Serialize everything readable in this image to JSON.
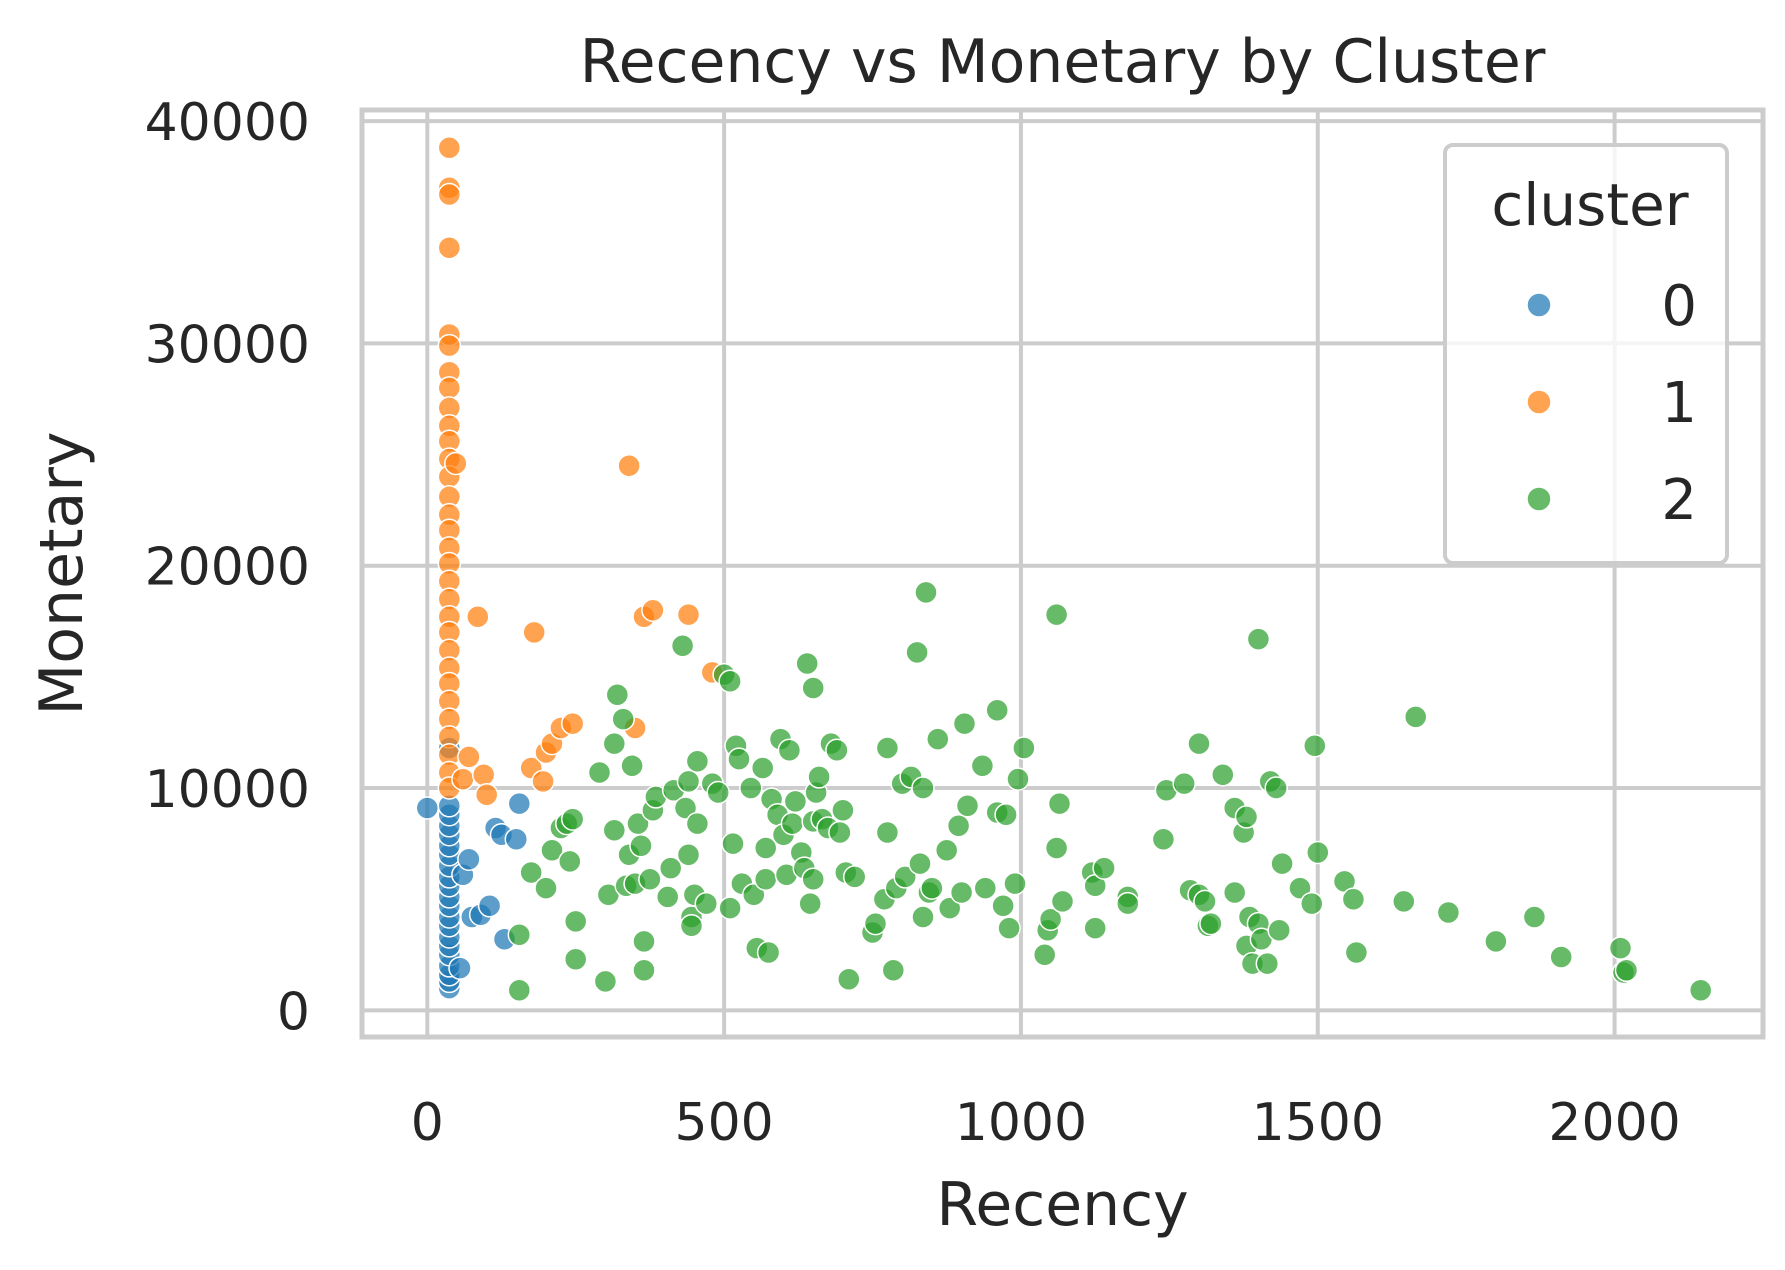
{
  "chart_data": {
    "type": "scatter",
    "title": "Recency vs Monetary by Cluster",
    "xlabel": "Recency",
    "ylabel": "Monetary",
    "xlim": [
      -110,
      2250
    ],
    "ylim": [
      -1200,
      40500
    ],
    "x_ticks": [
      0,
      500,
      1000,
      1500,
      2000
    ],
    "y_ticks": [
      0,
      10000,
      20000,
      30000,
      40000
    ],
    "grid": true,
    "legend": {
      "title": "cluster",
      "placement": "top-right"
    },
    "series": [
      {
        "name": "0",
        "color": "#1f77b4",
        "points": [
          [
            0,
            9100
          ],
          [
            37,
            1000
          ],
          [
            37,
            1300
          ],
          [
            37,
            1600
          ],
          [
            37,
            2000
          ],
          [
            37,
            2500
          ],
          [
            37,
            2900
          ],
          [
            37,
            3300
          ],
          [
            37,
            3800
          ],
          [
            37,
            4200
          ],
          [
            37,
            4700
          ],
          [
            37,
            5100
          ],
          [
            37,
            5600
          ],
          [
            37,
            6000
          ],
          [
            37,
            6500
          ],
          [
            37,
            7000
          ],
          [
            37,
            7400
          ],
          [
            37,
            7900
          ],
          [
            37,
            8300
          ],
          [
            37,
            8800
          ],
          [
            37,
            9200
          ],
          [
            37,
            11800
          ],
          [
            55,
            1900
          ],
          [
            60,
            6100
          ],
          [
            70,
            6800
          ],
          [
            75,
            4200
          ],
          [
            90,
            4300
          ],
          [
            105,
            4700
          ],
          [
            115,
            8200
          ],
          [
            125,
            7900
          ],
          [
            130,
            3200
          ],
          [
            150,
            7700
          ],
          [
            155,
            9300
          ]
        ]
      },
      {
        "name": "1",
        "color": "#ff7f0e",
        "points": [
          [
            37,
            38800
          ],
          [
            37,
            37000
          ],
          [
            37,
            36700
          ],
          [
            37,
            34300
          ],
          [
            37,
            30400
          ],
          [
            37,
            29900
          ],
          [
            37,
            28700
          ],
          [
            37,
            28000
          ],
          [
            37,
            27100
          ],
          [
            37,
            26300
          ],
          [
            37,
            25600
          ],
          [
            37,
            24800
          ],
          [
            37,
            24000
          ],
          [
            37,
            23100
          ],
          [
            37,
            22300
          ],
          [
            37,
            21600
          ],
          [
            37,
            20800
          ],
          [
            37,
            20100
          ],
          [
            37,
            19300
          ],
          [
            37,
            18500
          ],
          [
            37,
            17700
          ],
          [
            37,
            17000
          ],
          [
            37,
            16200
          ],
          [
            37,
            15400
          ],
          [
            37,
            14700
          ],
          [
            37,
            13900
          ],
          [
            37,
            13100
          ],
          [
            37,
            12300
          ],
          [
            37,
            11500
          ],
          [
            37,
            10700
          ],
          [
            37,
            10000
          ],
          [
            48,
            24600
          ],
          [
            60,
            10400
          ],
          [
            70,
            11400
          ],
          [
            85,
            17700
          ],
          [
            95,
            10600
          ],
          [
            100,
            9700
          ],
          [
            175,
            10900
          ],
          [
            180,
            17000
          ],
          [
            195,
            10300
          ],
          [
            200,
            11600
          ],
          [
            210,
            12000
          ],
          [
            225,
            12700
          ],
          [
            245,
            12900
          ],
          [
            340,
            24500
          ],
          [
            350,
            12700
          ],
          [
            365,
            17700
          ],
          [
            380,
            18000
          ],
          [
            440,
            17800
          ],
          [
            480,
            15200
          ]
        ]
      },
      {
        "name": "2",
        "color": "#2ca02c",
        "points": [
          [
            155,
            900
          ],
          [
            155,
            3400
          ],
          [
            175,
            6200
          ],
          [
            200,
            5500
          ],
          [
            210,
            7200
          ],
          [
            225,
            8200
          ],
          [
            235,
            8400
          ],
          [
            240,
            6700
          ],
          [
            245,
            8600
          ],
          [
            250,
            4000
          ],
          [
            250,
            2300
          ],
          [
            290,
            10700
          ],
          [
            300,
            1300
          ],
          [
            305,
            5200
          ],
          [
            315,
            12000
          ],
          [
            315,
            8100
          ],
          [
            320,
            14200
          ],
          [
            330,
            13100
          ],
          [
            335,
            5600
          ],
          [
            340,
            7000
          ],
          [
            345,
            11000
          ],
          [
            350,
            5700
          ],
          [
            355,
            8400
          ],
          [
            360,
            7400
          ],
          [
            365,
            3100
          ],
          [
            365,
            1800
          ],
          [
            375,
            5900
          ],
          [
            380,
            9000
          ],
          [
            385,
            9600
          ],
          [
            405,
            5100
          ],
          [
            410,
            6400
          ],
          [
            415,
            9900
          ],
          [
            430,
            16400
          ],
          [
            435,
            9100
          ],
          [
            440,
            10300
          ],
          [
            440,
            7000
          ],
          [
            445,
            4200
          ],
          [
            445,
            3800
          ],
          [
            450,
            5200
          ],
          [
            455,
            8400
          ],
          [
            455,
            11200
          ],
          [
            470,
            4800
          ],
          [
            480,
            10200
          ],
          [
            490,
            9800
          ],
          [
            500,
            15100
          ],
          [
            510,
            4600
          ],
          [
            510,
            14800
          ],
          [
            515,
            7500
          ],
          [
            520,
            11900
          ],
          [
            525,
            11300
          ],
          [
            530,
            5700
          ],
          [
            545,
            10000
          ],
          [
            550,
            5200
          ],
          [
            555,
            2800
          ],
          [
            565,
            10900
          ],
          [
            570,
            7300
          ],
          [
            570,
            5900
          ],
          [
            575,
            2600
          ],
          [
            580,
            9500
          ],
          [
            590,
            8800
          ],
          [
            595,
            12200
          ],
          [
            600,
            7900
          ],
          [
            605,
            6100
          ],
          [
            610,
            11700
          ],
          [
            615,
            8400
          ],
          [
            620,
            9400
          ],
          [
            630,
            7100
          ],
          [
            635,
            6400
          ],
          [
            640,
            15600
          ],
          [
            645,
            4800
          ],
          [
            650,
            8500
          ],
          [
            650,
            14500
          ],
          [
            650,
            5900
          ],
          [
            655,
            9800
          ],
          [
            660,
            10500
          ],
          [
            665,
            8600
          ],
          [
            675,
            8200
          ],
          [
            680,
            12000
          ],
          [
            690,
            11700
          ],
          [
            695,
            8000
          ],
          [
            700,
            9000
          ],
          [
            705,
            6200
          ],
          [
            710,
            1400
          ],
          [
            720,
            6000
          ],
          [
            750,
            3500
          ],
          [
            755,
            3900
          ],
          [
            770,
            5000
          ],
          [
            775,
            8000
          ],
          [
            775,
            11800
          ],
          [
            785,
            1800
          ],
          [
            790,
            5500
          ],
          [
            800,
            10200
          ],
          [
            805,
            6000
          ],
          [
            815,
            10500
          ],
          [
            825,
            16100
          ],
          [
            830,
            6600
          ],
          [
            835,
            4200
          ],
          [
            835,
            10000
          ],
          [
            840,
            18800
          ],
          [
            845,
            5300
          ],
          [
            850,
            5500
          ],
          [
            860,
            12200
          ],
          [
            875,
            7200
          ],
          [
            880,
            4600
          ],
          [
            895,
            8300
          ],
          [
            900,
            5300
          ],
          [
            905,
            12900
          ],
          [
            910,
            9200
          ],
          [
            935,
            11000
          ],
          [
            940,
            5500
          ],
          [
            960,
            13500
          ],
          [
            960,
            8900
          ],
          [
            970,
            4700
          ],
          [
            975,
            8800
          ],
          [
            980,
            3700
          ],
          [
            990,
            5700
          ],
          [
            995,
            10400
          ],
          [
            1005,
            11800
          ],
          [
            1040,
            2500
          ],
          [
            1045,
            3600
          ],
          [
            1050,
            4100
          ],
          [
            1060,
            17800
          ],
          [
            1060,
            7300
          ],
          [
            1065,
            9300
          ],
          [
            1070,
            4900
          ],
          [
            1120,
            6200
          ],
          [
            1125,
            5600
          ],
          [
            1125,
            3700
          ],
          [
            1140,
            6400
          ],
          [
            1180,
            5100
          ],
          [
            1180,
            4800
          ],
          [
            1240,
            7700
          ],
          [
            1245,
            9900
          ],
          [
            1275,
            10200
          ],
          [
            1285,
            5400
          ],
          [
            1300,
            12000
          ],
          [
            1300,
            5200
          ],
          [
            1310,
            4900
          ],
          [
            1315,
            3800
          ],
          [
            1320,
            3900
          ],
          [
            1340,
            10600
          ],
          [
            1360,
            5300
          ],
          [
            1360,
            9100
          ],
          [
            1375,
            8000
          ],
          [
            1380,
            8700
          ],
          [
            1380,
            2900
          ],
          [
            1385,
            4200
          ],
          [
            1390,
            2100
          ],
          [
            1400,
            16700
          ],
          [
            1400,
            3900
          ],
          [
            1405,
            3200
          ],
          [
            1415,
            2100
          ],
          [
            1420,
            10300
          ],
          [
            1430,
            10000
          ],
          [
            1435,
            3600
          ],
          [
            1440,
            6600
          ],
          [
            1470,
            5500
          ],
          [
            1490,
            4800
          ],
          [
            1495,
            11900
          ],
          [
            1500,
            7100
          ],
          [
            1545,
            5800
          ],
          [
            1560,
            5000
          ],
          [
            1565,
            2600
          ],
          [
            1645,
            4900
          ],
          [
            1665,
            13200
          ],
          [
            1720,
            4400
          ],
          [
            1800,
            3100
          ],
          [
            1865,
            4200
          ],
          [
            1910,
            2400
          ],
          [
            2010,
            2800
          ],
          [
            2015,
            1700
          ],
          [
            2020,
            1800
          ],
          [
            2145,
            900
          ]
        ]
      }
    ]
  }
}
